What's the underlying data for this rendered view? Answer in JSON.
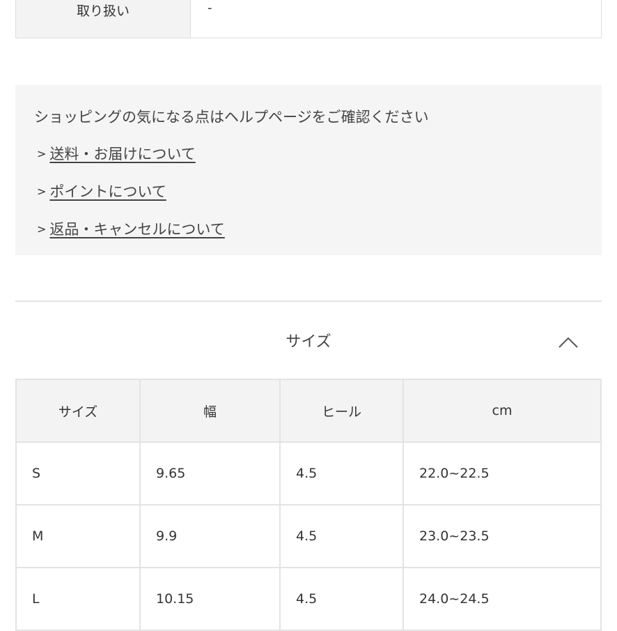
{
  "spec_row": {
    "label": "取り扱い",
    "value": "-"
  },
  "help": {
    "title": "ショッピングの気になる点はヘルプページをご確認ください",
    "links": [
      {
        "label": "送料・お届けについて"
      },
      {
        "label": "ポイントについて"
      },
      {
        "label": "返品・キャンセルについて"
      }
    ]
  },
  "size_section": {
    "title": "サイズ",
    "toggle_icon": "chevron-up-icon",
    "headers": [
      "サイズ",
      "幅",
      "ヒール",
      "cm"
    ],
    "rows": [
      [
        "S",
        "9.65",
        "4.5",
        "22.0~22.5"
      ],
      [
        "M",
        "9.9",
        "4.5",
        "23.0~23.5"
      ],
      [
        "L",
        "10.15",
        "4.5",
        "24.0~24.5"
      ]
    ]
  }
}
